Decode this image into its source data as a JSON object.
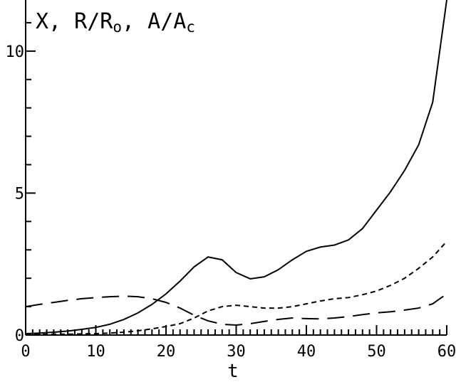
{
  "chart_data": {
    "type": "line",
    "ylabel": [
      {
        "text": "X, R/R"
      },
      {
        "text": "o",
        "sub": true
      },
      {
        "text": ", A/A"
      },
      {
        "text": "c",
        "sub": true
      }
    ],
    "xlabel": "t",
    "x": [
      0,
      2,
      4,
      6,
      8,
      10,
      12,
      14,
      16,
      18,
      20,
      22,
      24,
      26,
      28,
      30,
      32,
      34,
      36,
      38,
      40,
      42,
      44,
      46,
      48,
      50,
      52,
      54,
      56,
      58,
      60
    ],
    "series": [
      {
        "color": "#000000",
        "dash": "solid",
        "values": [
          0.05,
          0.07,
          0.1,
          0.14,
          0.2,
          0.27,
          0.38,
          0.55,
          0.78,
          1.08,
          1.45,
          1.9,
          2.4,
          2.75,
          2.65,
          2.2,
          1.98,
          2.05,
          2.3,
          2.65,
          2.95,
          3.1,
          3.17,
          3.35,
          3.75,
          4.4,
          5.05,
          5.8,
          6.7,
          8.2,
          11.8
        ]
      },
      {
        "color": "#000000",
        "dash": "short",
        "values": [
          0.02,
          0.02,
          0.03,
          0.03,
          0.04,
          0.05,
          0.07,
          0.1,
          0.15,
          0.22,
          0.3,
          0.4,
          0.6,
          0.85,
          1.0,
          1.05,
          1.0,
          0.95,
          0.95,
          1.0,
          1.1,
          1.2,
          1.28,
          1.32,
          1.42,
          1.55,
          1.75,
          2.0,
          2.35,
          2.75,
          3.3
        ]
      },
      {
        "color": "#000000",
        "dash": "long",
        "values": [
          1.0,
          1.08,
          1.15,
          1.22,
          1.28,
          1.32,
          1.35,
          1.37,
          1.35,
          1.28,
          1.15,
          0.95,
          0.7,
          0.5,
          0.38,
          0.35,
          0.4,
          0.48,
          0.55,
          0.6,
          0.58,
          0.57,
          0.6,
          0.65,
          0.72,
          0.78,
          0.82,
          0.88,
          0.95,
          1.1,
          1.45
        ]
      }
    ],
    "xlim": [
      0,
      60
    ],
    "ylim": [
      0,
      11.8
    ],
    "xticks": [
      0,
      10,
      20,
      30,
      40,
      50,
      60
    ],
    "yticks": [
      0,
      5,
      10
    ],
    "xminorticks": [
      1,
      2,
      3,
      4,
      5,
      6,
      7,
      8,
      9,
      11,
      12,
      13,
      14,
      15,
      16,
      17,
      18,
      19,
      21,
      22,
      23,
      24,
      25,
      26,
      27,
      28,
      29,
      31,
      32,
      33,
      34,
      35,
      36,
      37,
      38,
      39,
      41,
      42,
      43,
      44,
      45,
      46,
      47,
      48,
      49,
      51,
      52,
      53,
      54,
      55,
      56,
      57,
      58,
      59
    ],
    "yminorticks": [
      1,
      2,
      3,
      4,
      6,
      7,
      8,
      9,
      11
    ]
  }
}
